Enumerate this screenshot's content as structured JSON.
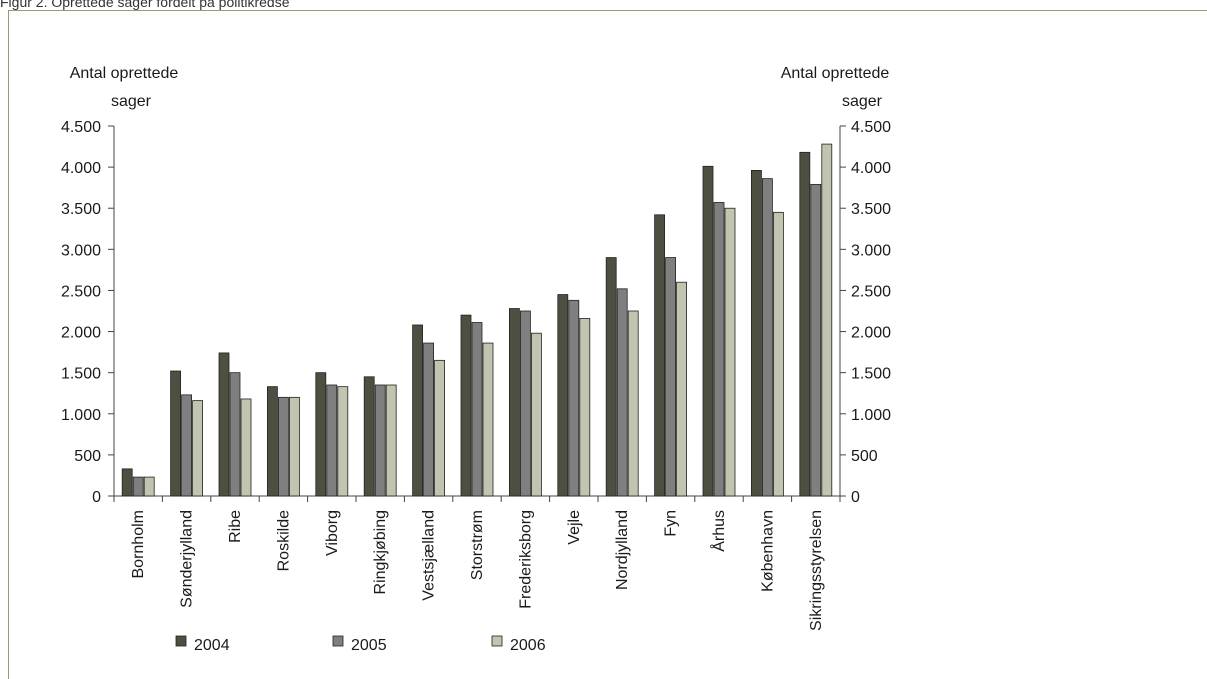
{
  "page": {
    "caption": "Figur 2. Oprettede sager fordelt på politikredse"
  },
  "chart_data": {
    "type": "bar",
    "title": "",
    "ylabel_left": "Antal oprettede sager",
    "ylabel_right": "Antal oprettede sager",
    "xlabel": "",
    "ylim": [
      0,
      4500
    ],
    "ytick_values": [
      0,
      500,
      1000,
      1500,
      2000,
      2500,
      3000,
      3500,
      4000,
      4500
    ],
    "ytick_labels": [
      "0",
      "500",
      "1.000",
      "1.500",
      "2.000",
      "2.500",
      "3.000",
      "3.500",
      "4.000",
      "4.500"
    ],
    "categories": [
      "Bornholm",
      "Sønderjylland",
      "Ribe",
      "Roskilde",
      "Viborg",
      "Ringkjøbing",
      "Vestsjælland",
      "Storstrøm",
      "Frederiksborg",
      "Vejle",
      "Nordjylland",
      "Fyn",
      "Århus",
      "København",
      "Sikringsstyrelsen"
    ],
    "series": [
      {
        "name": "2004",
        "color": "#4d5040",
        "values": [
          330,
          1520,
          1740,
          1330,
          1500,
          1450,
          2080,
          2200,
          2280,
          2450,
          2900,
          3420,
          4010,
          3960,
          4180
        ]
      },
      {
        "name": "2005",
        "color": "#7f7f7f",
        "values": [
          230,
          1230,
          1500,
          1200,
          1350,
          1350,
          1860,
          2110,
          2250,
          2380,
          2520,
          2900,
          3570,
          3860,
          3790
        ]
      },
      {
        "name": "2006",
        "color": "#c1c4ae",
        "values": [
          230,
          1160,
          1180,
          1200,
          1330,
          1350,
          1650,
          1860,
          1980,
          2160,
          2250,
          2600,
          3500,
          3450,
          4280
        ]
      }
    ],
    "grid": false,
    "legend_position": "bottom"
  }
}
